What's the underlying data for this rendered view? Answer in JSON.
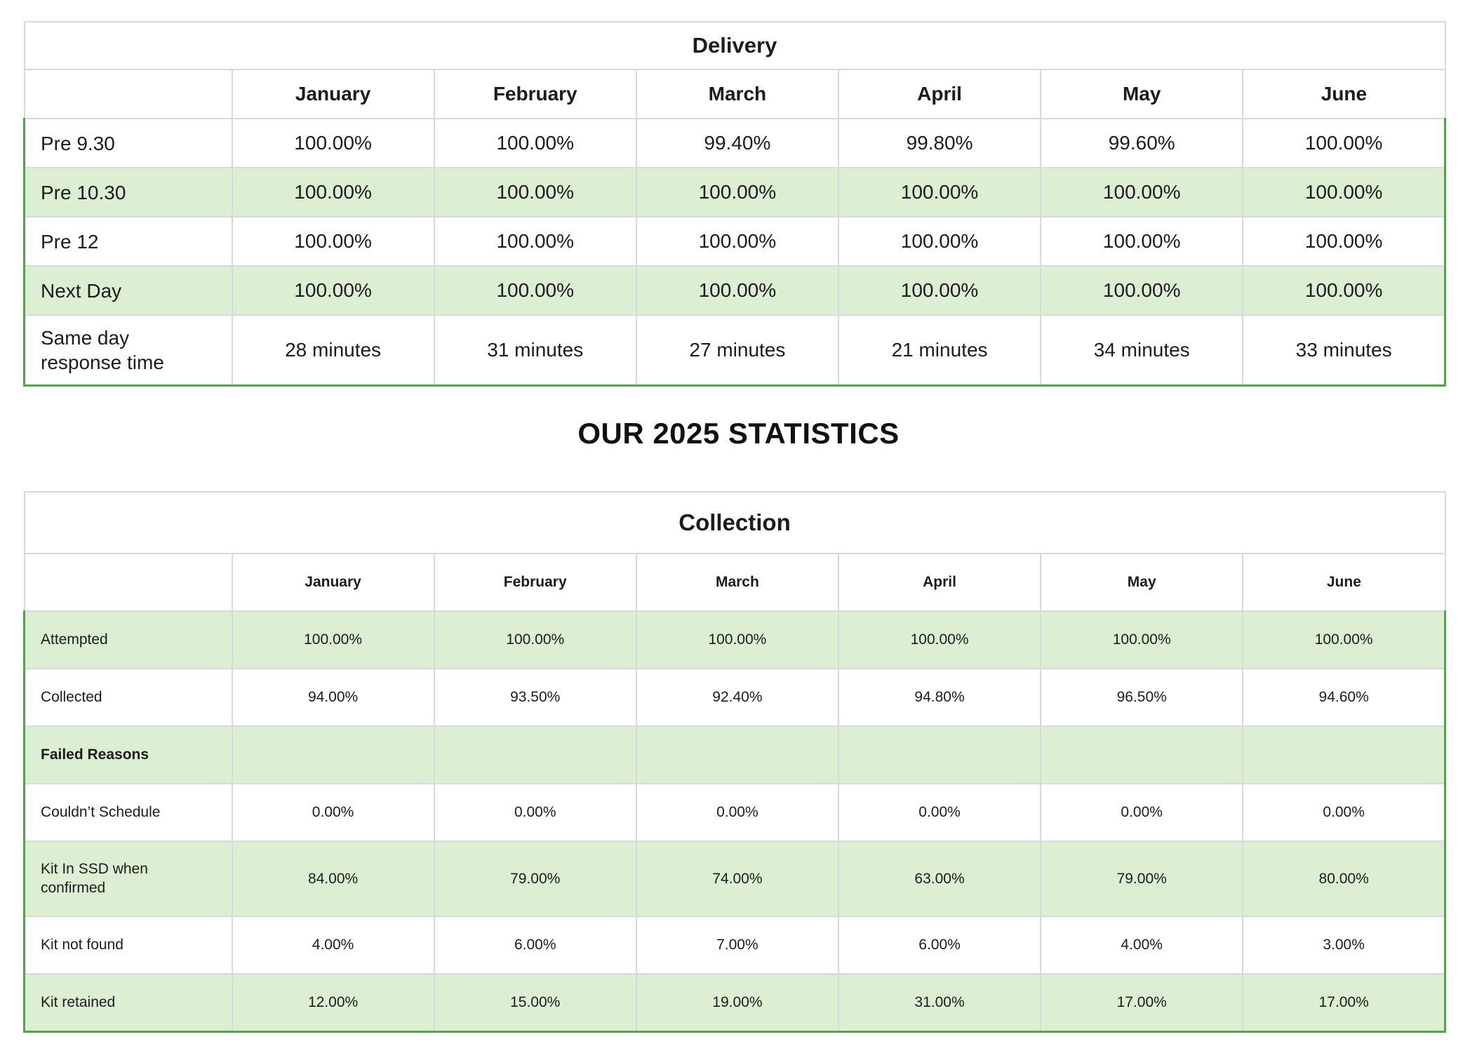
{
  "page": {
    "heading": "OUR 2025 STATISTICS"
  },
  "colors": {
    "row_highlight_green": "#dcefd3",
    "data_outline_green": "#4fa846",
    "grid_gray": "#d9d9d9"
  },
  "delivery_table": {
    "title": "Delivery",
    "months": [
      "January",
      "February",
      "March",
      "April",
      "May",
      "June"
    ],
    "rows": [
      {
        "label": "Pre 9.30",
        "highlight": false,
        "bold": false,
        "values": [
          "100.00%",
          "100.00%",
          "99.40%",
          "99.80%",
          "99.60%",
          "100.00%"
        ]
      },
      {
        "label": "Pre 10.30",
        "highlight": true,
        "bold": false,
        "values": [
          "100.00%",
          "100.00%",
          "100.00%",
          "100.00%",
          "100.00%",
          "100.00%"
        ]
      },
      {
        "label": "Pre 12",
        "highlight": false,
        "bold": false,
        "values": [
          "100.00%",
          "100.00%",
          "100.00%",
          "100.00%",
          "100.00%",
          "100.00%"
        ]
      },
      {
        "label": "Next Day",
        "highlight": true,
        "bold": false,
        "values": [
          "100.00%",
          "100.00%",
          "100.00%",
          "100.00%",
          "100.00%",
          "100.00%"
        ]
      },
      {
        "label": "Same day response time",
        "highlight": false,
        "bold": false,
        "values": [
          "28 minutes",
          "31 minutes",
          "27 minutes",
          "21 minutes",
          "34 minutes",
          "33 minutes"
        ]
      }
    ]
  },
  "collection_table": {
    "title": "Collection",
    "months": [
      "January",
      "February",
      "March",
      "April",
      "May",
      "June"
    ],
    "rows": [
      {
        "label": "Attempted",
        "highlight": true,
        "bold": false,
        "values": [
          "100.00%",
          "100.00%",
          "100.00%",
          "100.00%",
          "100.00%",
          "100.00%"
        ]
      },
      {
        "label": "Collected",
        "highlight": false,
        "bold": false,
        "values": [
          "94.00%",
          "93.50%",
          "92.40%",
          "94.80%",
          "96.50%",
          "94.60%"
        ]
      },
      {
        "label": "Failed Reasons",
        "highlight": true,
        "bold": true,
        "values": [
          "",
          "",
          "",
          "",
          "",
          ""
        ]
      },
      {
        "label": "Couldn’t Schedule",
        "highlight": false,
        "bold": false,
        "values": [
          "0.00%",
          "0.00%",
          "0.00%",
          "0.00%",
          "0.00%",
          "0.00%"
        ]
      },
      {
        "label": "Kit In SSD when confirmed",
        "highlight": true,
        "bold": false,
        "tall": true,
        "values": [
          "84.00%",
          "79.00%",
          "74.00%",
          "63.00%",
          "79.00%",
          "80.00%"
        ]
      },
      {
        "label": "Kit not found",
        "highlight": false,
        "bold": false,
        "values": [
          "4.00%",
          "6.00%",
          "7.00%",
          "6.00%",
          "4.00%",
          "3.00%"
        ]
      },
      {
        "label": "Kit retained",
        "highlight": true,
        "bold": false,
        "values": [
          "12.00%",
          "15.00%",
          "19.00%",
          "31.00%",
          "17.00%",
          "17.00%"
        ]
      }
    ]
  }
}
